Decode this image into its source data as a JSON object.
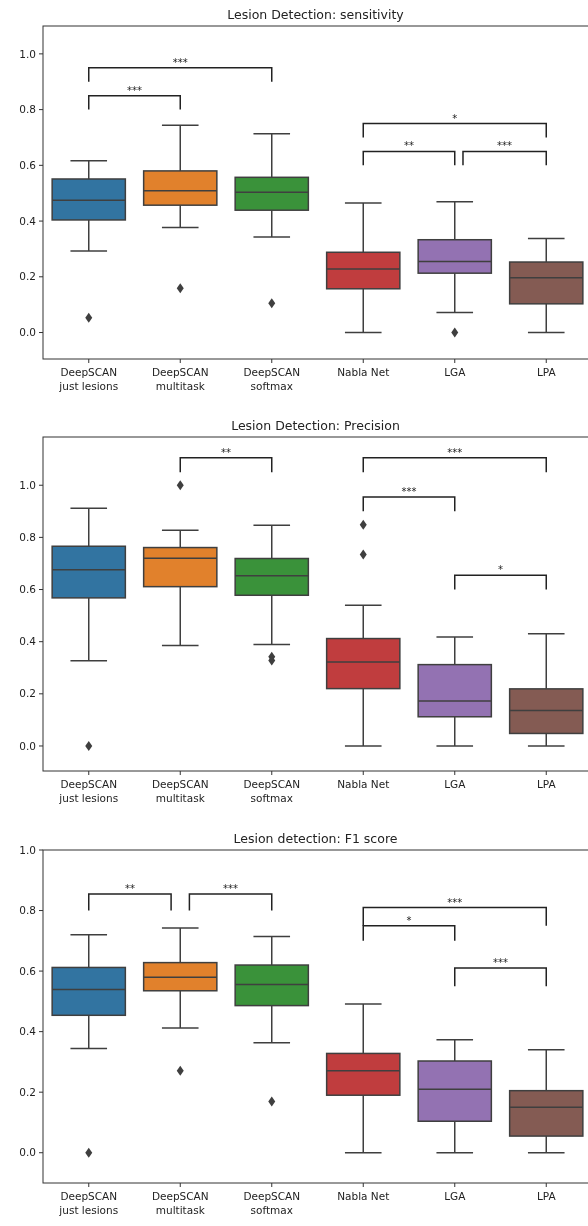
{
  "chart_data": [
    {
      "type": "box",
      "title": "Lesion Detection: sensitivity",
      "categories": [
        "DeepSCAN\njust lesions",
        "DeepSCAN\nmultitask",
        "DeepSCAN\nsoftmax",
        "Nabla Net",
        "LGA",
        "LPA"
      ],
      "colors": [
        "#3274a1",
        "#e1812c",
        "#3a923a",
        "#c03d3e",
        "#9372b2",
        "#845b53"
      ],
      "boxes": [
        {
          "low": 0.293,
          "q1": 0.404,
          "median": 0.475,
          "q3": 0.551,
          "high": 0.616,
          "outliers": [
            0.053
          ]
        },
        {
          "low": 0.377,
          "q1": 0.457,
          "median": 0.509,
          "q3": 0.58,
          "high": 0.744,
          "outliers": [
            0.159
          ]
        },
        {
          "low": 0.343,
          "q1": 0.439,
          "median": 0.503,
          "q3": 0.557,
          "high": 0.713,
          "outliers": [
            0.105
          ]
        },
        {
          "low": 0,
          "q1": 0.157,
          "median": 0.228,
          "q3": 0.288,
          "high": 0.465
        },
        {
          "low": 0.072,
          "q1": 0.213,
          "median": 0.255,
          "q3": 0.333,
          "high": 0.469,
          "outliers": [
            0
          ]
        },
        {
          "low": 0,
          "q1": 0.103,
          "median": 0.197,
          "q3": 0.253,
          "high": 0.337
        }
      ],
      "ylim": [
        -0.095,
        1.1
      ],
      "yticks": [
        {
          "value": 0,
          "label": "0.0"
        },
        {
          "value": 0.2,
          "label": "0.2"
        },
        {
          "value": 0.4,
          "label": "0.4"
        },
        {
          "value": 0.6,
          "label": "0.6"
        },
        {
          "value": 0.8,
          "label": "0.8"
        },
        {
          "value": 1,
          "label": "1.0"
        }
      ],
      "annotations": [
        "***",
        "***",
        "*",
        "**",
        "***"
      ]
    },
    {
      "type": "box",
      "title": "Lesion Detection: Precision",
      "categories": [
        "DeepSCAN\njust lesions",
        "DeepSCAN\nmultitask",
        "DeepSCAN\nsoftmax",
        "Nabla Net",
        "LGA",
        "LPA"
      ],
      "colors": [
        "#3274a1",
        "#e1812c",
        "#3a923a",
        "#c03d3e",
        "#9372b2",
        "#845b53"
      ],
      "boxes": [
        {
          "low": 0.327,
          "q1": 0.568,
          "median": 0.676,
          "q3": 0.766,
          "high": 0.912,
          "outliers": [
            0
          ]
        },
        {
          "low": 0.385,
          "q1": 0.611,
          "median": 0.72,
          "q3": 0.761,
          "high": 0.827,
          "outliers": [
            1.0
          ]
        },
        {
          "low": 0.389,
          "q1": 0.578,
          "median": 0.653,
          "q3": 0.719,
          "high": 0.847,
          "outliers": [
            0.342,
            0.328
          ]
        },
        {
          "low": 0,
          "q1": 0.22,
          "median": 0.322,
          "q3": 0.412,
          "high": 0.54,
          "outliers": [
            0.734,
            0.848
          ]
        },
        {
          "low": 0,
          "q1": 0.112,
          "median": 0.172,
          "q3": 0.312,
          "high": 0.418
        },
        {
          "low": 0,
          "q1": 0.048,
          "median": 0.136,
          "q3": 0.219,
          "high": 0.43
        }
      ],
      "ylim": [
        -0.096,
        1.185
      ],
      "yticks": [
        {
          "value": 0,
          "label": "0.0"
        },
        {
          "value": 0.2,
          "label": "0.2"
        },
        {
          "value": 0.4,
          "label": "0.4"
        },
        {
          "value": 0.6,
          "label": "0.6"
        },
        {
          "value": 0.8,
          "label": "0.8"
        },
        {
          "value": 1,
          "label": "1.0"
        }
      ],
      "annotations": [
        "**",
        "***",
        "***",
        "*"
      ]
    },
    {
      "type": "box",
      "title": "Lesion detection: F1 score",
      "categories": [
        "DeepSCAN\njust lesions",
        "DeepSCAN\nmultitask",
        "DeepSCAN\nsoftmax",
        "Nabla Net",
        "LGA",
        "LPA"
      ],
      "colors": [
        "#3274a1",
        "#e1812c",
        "#3a923a",
        "#c03d3e",
        "#9372b2",
        "#845b53"
      ],
      "boxes": [
        {
          "low": 0.344,
          "q1": 0.454,
          "median": 0.539,
          "q3": 0.612,
          "high": 0.72,
          "outliers": [
            0
          ]
        },
        {
          "low": 0.412,
          "q1": 0.535,
          "median": 0.58,
          "q3": 0.628,
          "high": 0.742,
          "outliers": [
            0.271
          ]
        },
        {
          "low": 0.363,
          "q1": 0.486,
          "median": 0.556,
          "q3": 0.62,
          "high": 0.714,
          "outliers": [
            0.169
          ]
        },
        {
          "low": 0,
          "q1": 0.19,
          "median": 0.271,
          "q3": 0.328,
          "high": 0.491
        },
        {
          "low": 0,
          "q1": 0.104,
          "median": 0.21,
          "q3": 0.303,
          "high": 0.373
        },
        {
          "low": 0,
          "q1": 0.055,
          "median": 0.15,
          "q3": 0.205,
          "high": 0.34
        }
      ],
      "ylim": [
        -0.1,
        1.0
      ],
      "yticks": [
        {
          "value": 0,
          "label": "0.0"
        },
        {
          "value": 0.2,
          "label": "0.2"
        },
        {
          "value": 0.4,
          "label": "0.4"
        },
        {
          "value": 0.6,
          "label": "0.6"
        },
        {
          "value": 0.8,
          "label": "0.8"
        },
        {
          "value": 1,
          "label": "1.0"
        }
      ],
      "annotations": [
        "**",
        "***",
        "***",
        "*",
        "***"
      ]
    }
  ]
}
